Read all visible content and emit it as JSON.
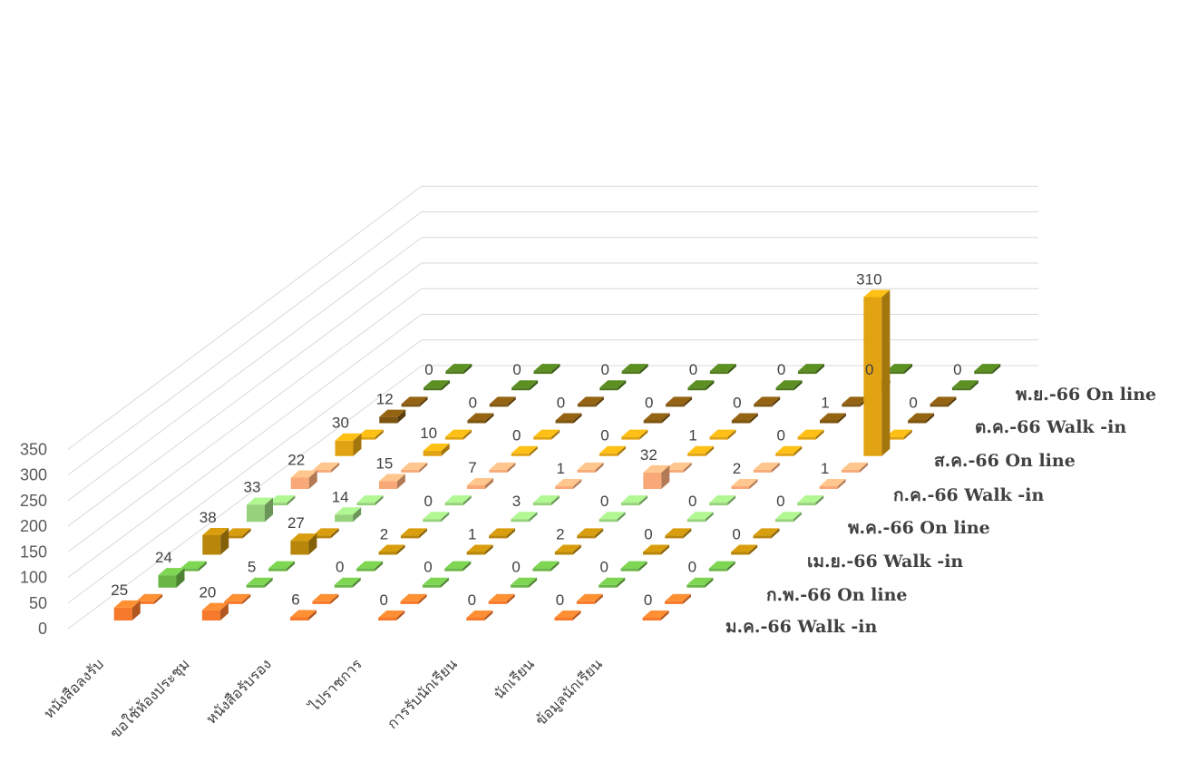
{
  "chart_data": {
    "type": "bar",
    "subtype": "3d-column",
    "title": "",
    "ylim": [
      0,
      350
    ],
    "yticks": [
      0,
      50,
      100,
      150,
      200,
      250,
      300,
      350
    ],
    "grid": true,
    "categories": [
      "หนังสือลงรับ",
      "ขอใช้ห้องประชุม",
      "หนังสือรับรอง",
      "ไปราชการ",
      "การรับนักเรียน",
      "นักเรียน",
      "ข้อมูลนักเรียน"
    ],
    "series_labels": [
      "ม.ค.-66 Walk -in",
      "ก.พ.-66 On line",
      "เม.ย.-66 Walk -in",
      "พ.ค.-66 On line",
      "ก.ค.-66 Walk -in",
      "ส.ค.-66 On line",
      "ต.ค.-66 Walk -in",
      "พ.ย.-66 On line"
    ],
    "series": [
      {
        "name": "ม.ค.-66 Walk -in",
        "color": "#f7792b",
        "values": [
          25,
          20,
          6,
          0,
          0,
          0,
          0
        ],
        "values_online": [
          0,
          0,
          0,
          0,
          0,
          0,
          0
        ]
      },
      {
        "name": "ก.พ.-66 On line",
        "color": "#6bb546",
        "values": [
          24,
          5,
          0,
          0,
          0,
          0,
          0
        ],
        "values_online": [
          0,
          0,
          0,
          0,
          0,
          0,
          0
        ]
      },
      {
        "name": "เม.ย.-66 Walk -in",
        "color": "#b8860b",
        "values": [
          38,
          27,
          2,
          1,
          2,
          0,
          0
        ],
        "values_online": [
          0,
          0,
          0,
          0,
          0,
          0,
          0
        ]
      },
      {
        "name": "พ.ค.-66 On line",
        "color": "#96d17c",
        "values": [
          33,
          14,
          0,
          3,
          0,
          0,
          0
        ],
        "values_online": [
          0,
          0,
          0,
          0,
          0,
          0,
          0
        ]
      },
      {
        "name": "ก.ค.-66 Walk -in",
        "color": "#f9a978",
        "values": [
          22,
          15,
          7,
          1,
          32,
          2,
          1
        ],
        "values_online": [
          0,
          0,
          0,
          0,
          0,
          0,
          0
        ]
      },
      {
        "name": "ส.ค.-66 On line",
        "color": "#e2a312",
        "values": [
          30,
          10,
          0,
          0,
          1,
          0,
          310
        ],
        "values_online": [
          0,
          0,
          0,
          0,
          0,
          0,
          0
        ]
      },
      {
        "name": "ต.ค.-66 Walk -in",
        "color": "#7d5510",
        "values": [
          12,
          0,
          0,
          0,
          0,
          1,
          0
        ],
        "values_online": [
          0,
          0,
          0,
          0,
          0,
          0,
          0
        ]
      },
      {
        "name": "พ.ย.-66 On line",
        "color": "#4e7a1d",
        "values": [
          0,
          0,
          0,
          0,
          0,
          0,
          0
        ],
        "values_online": [
          0,
          0,
          0,
          0,
          0,
          0,
          0
        ]
      }
    ]
  }
}
